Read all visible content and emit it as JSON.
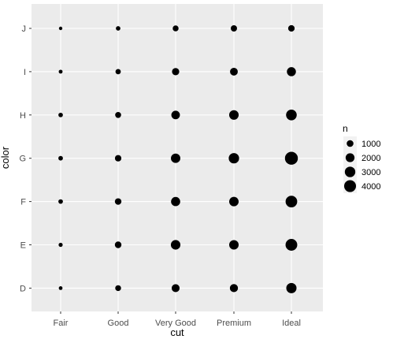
{
  "chart_data": {
    "type": "scatter",
    "subtype": "count-bubble",
    "title": "",
    "xlabel": "cut",
    "ylabel": "color",
    "x_categories": [
      "Fair",
      "Good",
      "Very Good",
      "Premium",
      "Ideal"
    ],
    "y_categories": [
      "D",
      "E",
      "F",
      "G",
      "H",
      "I",
      "J"
    ],
    "size_legend": {
      "title": "n",
      "breaks": [
        1000,
        2000,
        3000,
        4000
      ],
      "labels": [
        "1000",
        "2000",
        "3000",
        "4000"
      ]
    },
    "counts": [
      {
        "cut": "Fair",
        "color": "D",
        "n": 163
      },
      {
        "cut": "Fair",
        "color": "E",
        "n": 224
      },
      {
        "cut": "Fair",
        "color": "F",
        "n": 312
      },
      {
        "cut": "Fair",
        "color": "G",
        "n": 314
      },
      {
        "cut": "Fair",
        "color": "H",
        "n": 303
      },
      {
        "cut": "Fair",
        "color": "I",
        "n": 175
      },
      {
        "cut": "Fair",
        "color": "J",
        "n": 119
      },
      {
        "cut": "Good",
        "color": "D",
        "n": 662
      },
      {
        "cut": "Good",
        "color": "E",
        "n": 933
      },
      {
        "cut": "Good",
        "color": "F",
        "n": 909
      },
      {
        "cut": "Good",
        "color": "G",
        "n": 871
      },
      {
        "cut": "Good",
        "color": "H",
        "n": 702
      },
      {
        "cut": "Good",
        "color": "I",
        "n": 522
      },
      {
        "cut": "Good",
        "color": "J",
        "n": 307
      },
      {
        "cut": "Very Good",
        "color": "D",
        "n": 1513
      },
      {
        "cut": "Very Good",
        "color": "E",
        "n": 2400
      },
      {
        "cut": "Very Good",
        "color": "F",
        "n": 2164
      },
      {
        "cut": "Very Good",
        "color": "G",
        "n": 2299
      },
      {
        "cut": "Very Good",
        "color": "H",
        "n": 1824
      },
      {
        "cut": "Very Good",
        "color": "I",
        "n": 1204
      },
      {
        "cut": "Very Good",
        "color": "J",
        "n": 678
      },
      {
        "cut": "Premium",
        "color": "D",
        "n": 1603
      },
      {
        "cut": "Premium",
        "color": "E",
        "n": 2337
      },
      {
        "cut": "Premium",
        "color": "F",
        "n": 2331
      },
      {
        "cut": "Premium",
        "color": "G",
        "n": 2924
      },
      {
        "cut": "Premium",
        "color": "H",
        "n": 2360
      },
      {
        "cut": "Premium",
        "color": "I",
        "n": 1428
      },
      {
        "cut": "Premium",
        "color": "J",
        "n": 808
      },
      {
        "cut": "Ideal",
        "color": "D",
        "n": 2834
      },
      {
        "cut": "Ideal",
        "color": "E",
        "n": 3903
      },
      {
        "cut": "Ideal",
        "color": "F",
        "n": 3826
      },
      {
        "cut": "Ideal",
        "color": "G",
        "n": 4884
      },
      {
        "cut": "Ideal",
        "color": "H",
        "n": 3115
      },
      {
        "cut": "Ideal",
        "color": "I",
        "n": 2093
      },
      {
        "cut": "Ideal",
        "color": "J",
        "n": 896
      }
    ],
    "size_domain": [
      119,
      4884
    ],
    "grid": true,
    "legend_position": "right",
    "colors": {
      "panel": "#ebebeb",
      "gridline": "#ffffff",
      "point": "#000000",
      "axis_text": "#4d4d4d",
      "axis_title": "#000000",
      "tick": "#333333"
    }
  }
}
